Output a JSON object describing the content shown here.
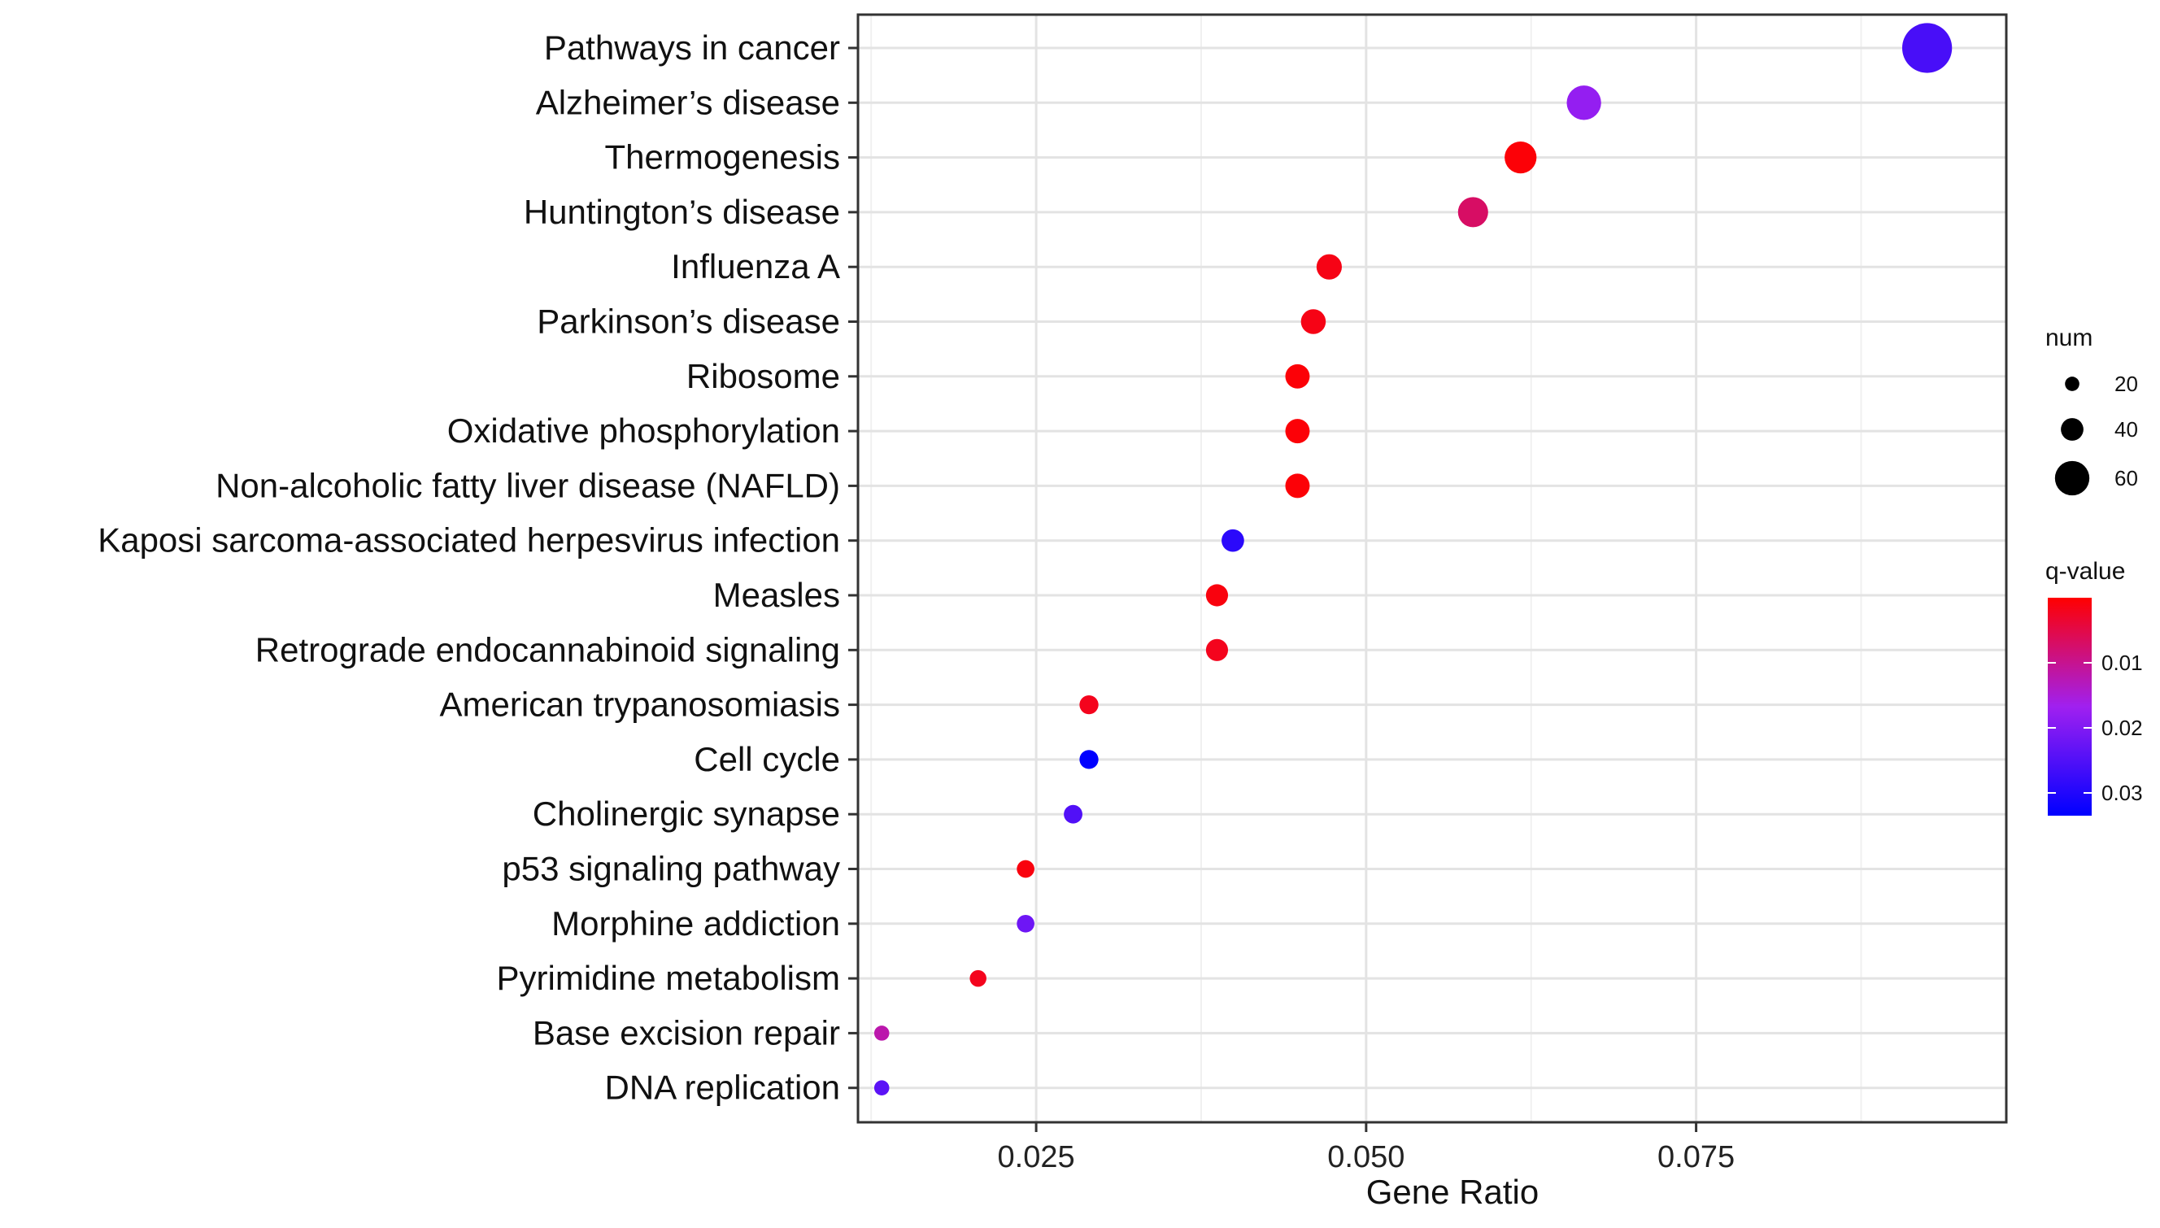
{
  "chart_data": {
    "type": "scatter",
    "subtype": "dot-plot",
    "title": "",
    "xlabel": "Gene Ratio",
    "ylabel": "",
    "xlim": [
      0.0115,
      0.0985
    ],
    "xticks": [
      0.025,
      0.05,
      0.075
    ],
    "xtick_labels": [
      "0.025",
      "0.050",
      "0.075"
    ],
    "grid": true,
    "categories": [
      "Pathways in cancer",
      "Alzheimer’s disease",
      "Thermogenesis",
      "Huntington’s disease",
      "Influenza A",
      "Parkinson’s disease",
      "Ribosome",
      "Oxidative phosphorylation",
      "Non-alcoholic fatty liver disease (NAFLD)",
      "Kaposi sarcoma-associated herpesvirus infection",
      "Measles",
      "Retrograde endocannabinoid signaling",
      "American trypanosomiasis",
      "Cell cycle",
      "Cholinergic synapse",
      "p53 signaling pathway",
      "Morphine addiction",
      "Pyrimidine metabolism",
      "Base excision repair",
      "DNA replication"
    ],
    "gene_ratio": [
      0.0925,
      0.0665,
      0.0617,
      0.0581,
      0.0472,
      0.046,
      0.0448,
      0.0448,
      0.0448,
      0.0399,
      0.0387,
      0.0387,
      0.029,
      0.029,
      0.0278,
      0.0242,
      0.0242,
      0.0206,
      0.0133,
      0.0133
    ],
    "num": [
      76,
      55,
      51,
      48,
      39,
      38,
      37,
      37,
      37,
      33,
      32,
      32,
      24,
      24,
      23,
      20,
      20,
      17,
      11,
      11
    ],
    "q_value": [
      0.026,
      0.018,
      0.0005,
      0.007,
      0.0015,
      0.0015,
      0.0005,
      0.0005,
      0.0005,
      0.029,
      0.001,
      0.002,
      0.002,
      0.034,
      0.025,
      0.001,
      0.022,
      0.002,
      0.012,
      0.024
    ],
    "legend_position": "right",
    "size_legend": {
      "title": "num",
      "values": [
        20,
        40,
        60
      ],
      "labels": [
        "20",
        "40",
        "60"
      ]
    },
    "color_legend": {
      "title": "q-value",
      "range": [
        0.0,
        0.0335
      ],
      "ticks": [
        0.01,
        0.02,
        0.03
      ],
      "tick_labels": [
        "0.01",
        "0.02",
        "0.03"
      ],
      "low_color": "#ff0000",
      "mid_color": "#a020f0",
      "high_color": "#0000ff"
    }
  }
}
